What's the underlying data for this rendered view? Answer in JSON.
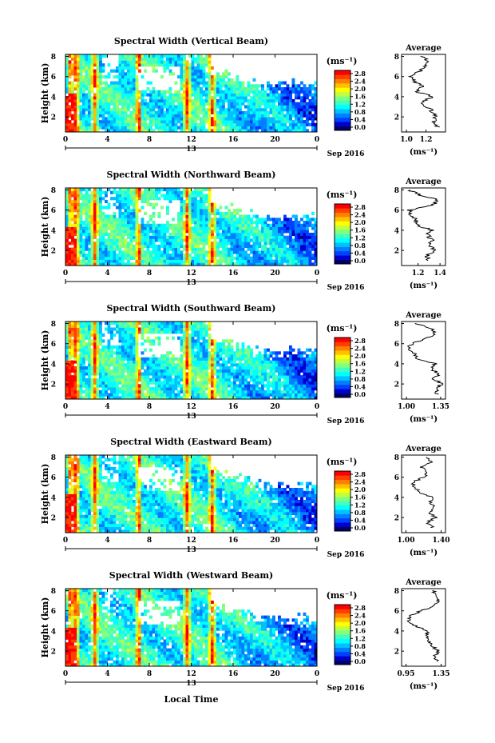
{
  "figure": {
    "x_axis_title": "Local Time",
    "date_label": "13",
    "month_year": "Sep 2016",
    "unit_label": "(ms⁻¹)",
    "avg_title": "Average",
    "height_axis_title": "Height (km)",
    "colormap": [
      "#000066",
      "#0000cc",
      "#0040ff",
      "#0080ff",
      "#00c0ff",
      "#00ffff",
      "#40ffc0",
      "#80ff80",
      "#c0ff40",
      "#ffff00",
      "#ffc000",
      "#ff8000",
      "#ff4000",
      "#ff0000"
    ]
  },
  "chart_data": [
    {
      "type": "heatmap",
      "title": "Spectral Width (Vertical Beam)",
      "xlabel": "Local Time",
      "ylabel": "Height (km)",
      "x_ticks": [
        "0",
        "4",
        "8",
        "12",
        "16",
        "20",
        "0"
      ],
      "x_range_hours": [
        0,
        24
      ],
      "y_ticks": [
        "2",
        "4",
        "6",
        "8"
      ],
      "y_range_km": [
        0.5,
        8.2
      ],
      "colorbar_ticks": [
        "2.8",
        "2.4",
        "2.0",
        "1.6",
        "1.2",
        "0.8",
        "0.4",
        "0.0"
      ],
      "colorbar_range": [
        0.0,
        2.8
      ],
      "hot_columns_hours": [
        0.5,
        1.0,
        2.8,
        7.0,
        11.6,
        14.0
      ],
      "average_profile": {
        "type": "line",
        "xlabel": "(ms⁻¹)",
        "x_ticks": [
          "1.0",
          "1.2"
        ],
        "xlim": [
          0.95,
          1.4
        ],
        "y_ticks": [
          "2",
          "4",
          "6",
          "8"
        ],
        "ylim": [
          0.5,
          8.2
        ],
        "heights_km": [
          1.0,
          1.5,
          2.0,
          2.5,
          3.0,
          3.5,
          4.0,
          4.5,
          5.0,
          5.5,
          6.0,
          6.5,
          7.0,
          7.5,
          8.0
        ],
        "values": [
          1.32,
          1.28,
          1.3,
          1.27,
          1.21,
          1.16,
          1.28,
          1.1,
          1.17,
          1.08,
          1.04,
          1.13,
          1.2,
          1.22,
          1.16
        ]
      }
    },
    {
      "type": "heatmap",
      "title": "Spectral Width (Northward Beam)",
      "xlabel": "Local Time",
      "ylabel": "Height (km)",
      "x_ticks": [
        "0",
        "4",
        "8",
        "12",
        "16",
        "20",
        "0"
      ],
      "x_range_hours": [
        0,
        24
      ],
      "y_ticks": [
        "2",
        "4",
        "6",
        "8"
      ],
      "y_range_km": [
        0.5,
        8.2
      ],
      "colorbar_ticks": [
        "2.8",
        "2.4",
        "2.0",
        "1.6",
        "1.2",
        "0.8",
        "0.4",
        "0.0"
      ],
      "colorbar_range": [
        0.0,
        2.8
      ],
      "hot_columns_hours": [
        0.5,
        1.0,
        2.8,
        7.0,
        11.6,
        14.0
      ],
      "average_profile": {
        "type": "line",
        "xlabel": "(ms⁻¹)",
        "x_ticks": [
          "1.2",
          "1.4"
        ],
        "xlim": [
          1.05,
          1.45
        ],
        "y_ticks": [
          "2",
          "4",
          "6",
          "8"
        ],
        "ylim": [
          0.5,
          8.2
        ],
        "heights_km": [
          1.0,
          1.5,
          2.0,
          2.5,
          3.0,
          3.5,
          4.0,
          4.5,
          5.0,
          5.5,
          6.0,
          6.5,
          7.0,
          7.5,
          8.0
        ],
        "values": [
          1.3,
          1.28,
          1.35,
          1.3,
          1.33,
          1.29,
          1.32,
          1.2,
          1.18,
          1.14,
          1.12,
          1.34,
          1.38,
          1.22,
          1.12
        ]
      }
    },
    {
      "type": "heatmap",
      "title": "Spectral Width (Southward Beam)",
      "xlabel": "Local Time",
      "ylabel": "Height (km)",
      "x_ticks": [
        "0",
        "4",
        "8",
        "12",
        "16",
        "20",
        "0"
      ],
      "x_range_hours": [
        0,
        24
      ],
      "y_ticks": [
        "2",
        "4",
        "6",
        "8"
      ],
      "y_range_km": [
        0.5,
        8.2
      ],
      "colorbar_ticks": [
        "2.8",
        "2.4",
        "2.0",
        "1.6",
        "1.2",
        "0.8",
        "0.4",
        "0.0"
      ],
      "colorbar_range": [
        0.0,
        2.8
      ],
      "hot_columns_hours": [
        0.5,
        1.0,
        2.8,
        7.0,
        11.6,
        14.0
      ],
      "average_profile": {
        "type": "line",
        "xlabel": "(ms⁻¹)",
        "x_ticks": [
          "1.00",
          "1.35"
        ],
        "xlim": [
          0.95,
          1.4
        ],
        "y_ticks": [
          "2",
          "4",
          "6",
          "8"
        ],
        "ylim": [
          0.5,
          8.2
        ],
        "heights_km": [
          1.0,
          1.5,
          2.0,
          2.5,
          3.0,
          3.5,
          4.0,
          4.5,
          5.0,
          5.5,
          6.0,
          6.5,
          7.0,
          7.5,
          8.0
        ],
        "values": [
          1.32,
          1.3,
          1.36,
          1.28,
          1.33,
          1.25,
          1.3,
          1.12,
          1.08,
          1.02,
          1.05,
          1.2,
          1.3,
          1.25,
          1.1
        ]
      }
    },
    {
      "type": "heatmap",
      "title": "Spectral Width (Eastward Beam)",
      "xlabel": "Local Time",
      "ylabel": "Height (km)",
      "x_ticks": [
        "0",
        "4",
        "8",
        "12",
        "16",
        "20",
        "0"
      ],
      "x_range_hours": [
        0,
        24
      ],
      "y_ticks": [
        "2",
        "4",
        "6",
        "8"
      ],
      "y_range_km": [
        0.5,
        8.2
      ],
      "colorbar_ticks": [
        "2.8",
        "2.4",
        "2.0",
        "1.6",
        "1.2",
        "0.8",
        "0.4",
        "0.0"
      ],
      "colorbar_range": [
        0.0,
        2.8
      ],
      "hot_columns_hours": [
        0.5,
        1.0,
        2.8,
        7.0,
        11.6,
        14.0
      ],
      "average_profile": {
        "type": "line",
        "xlabel": "(ms⁻¹)",
        "x_ticks": [
          "1.00",
          "1.40"
        ],
        "xlim": [
          0.95,
          1.45
        ],
        "y_ticks": [
          "2",
          "4",
          "6",
          "8"
        ],
        "ylim": [
          0.5,
          8.2
        ],
        "heights_km": [
          1.0,
          1.5,
          2.0,
          2.5,
          3.0,
          3.5,
          4.0,
          4.5,
          5.0,
          5.5,
          6.0,
          6.5,
          7.0,
          7.5,
          8.0
        ],
        "values": [
          1.3,
          1.24,
          1.33,
          1.26,
          1.32,
          1.28,
          1.3,
          1.15,
          1.1,
          1.08,
          1.2,
          1.25,
          1.18,
          1.28,
          1.22
        ]
      }
    },
    {
      "type": "heatmap",
      "title": "Spectral Width (Westward Beam)",
      "xlabel": "Local Time",
      "ylabel": "Height (km)",
      "x_ticks": [
        "0",
        "4",
        "8",
        "12",
        "16",
        "20",
        "0"
      ],
      "x_range_hours": [
        0,
        24
      ],
      "y_ticks": [
        "2",
        "4",
        "6",
        "8"
      ],
      "y_range_km": [
        0.5,
        8.2
      ],
      "colorbar_ticks": [
        "2.8",
        "2.4",
        "2.0",
        "1.6",
        "1.2",
        "0.8",
        "0.4",
        "0.0"
      ],
      "colorbar_range": [
        0.0,
        2.8
      ],
      "hot_columns_hours": [
        0.5,
        1.0,
        2.8,
        7.0,
        11.6,
        14.0
      ],
      "average_profile": {
        "type": "line",
        "xlabel": "(ms⁻¹)",
        "x_ticks": [
          "0.95",
          "1.35"
        ],
        "xlim": [
          0.9,
          1.4
        ],
        "y_ticks": [
          "2",
          "4",
          "6",
          "8"
        ],
        "ylim": [
          0.5,
          8.2
        ],
        "heights_km": [
          1.0,
          1.5,
          2.0,
          2.5,
          3.0,
          3.5,
          4.0,
          4.5,
          5.0,
          5.5,
          6.0,
          6.5,
          7.0,
          7.5,
          8.0
        ],
        "values": [
          1.3,
          1.27,
          1.32,
          1.25,
          1.22,
          1.18,
          1.2,
          1.05,
          0.98,
          1.0,
          1.12,
          1.28,
          1.32,
          1.3,
          1.26
        ]
      }
    }
  ]
}
